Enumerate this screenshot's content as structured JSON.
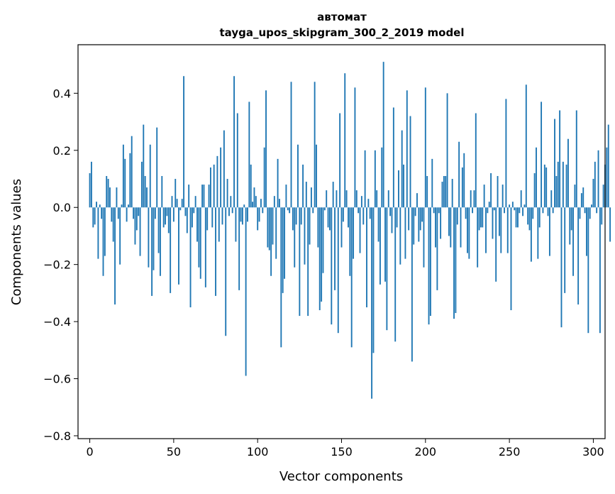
{
  "chart_data": {
    "type": "bar",
    "title": "автомат\ntayga_upos_skipgram_300_2_2019 model",
    "title_lines": [
      "автомат",
      "tayga_upos_skipgram_300_2_2019 model"
    ],
    "xlabel": "Vector components",
    "ylabel": "Components values",
    "xlim": [
      -7,
      307
    ],
    "ylim": [
      -0.81,
      0.57
    ],
    "xticks": [
      0,
      50,
      100,
      150,
      200,
      250,
      300
    ],
    "yticks": [
      -0.8,
      -0.6,
      -0.4,
      -0.2,
      0.0,
      0.2,
      0.4
    ],
    "ytick_labels": [
      "−0.8",
      "−0.6",
      "−0.4",
      "−0.2",
      "0.0",
      "0.2",
      "0.4"
    ],
    "grid": false,
    "bar_color": "#1f77b4",
    "x_start": 0,
    "values": [
      0.12,
      0.16,
      -0.07,
      -0.06,
      0.02,
      -0.18,
      0.01,
      -0.04,
      -0.24,
      -0.17,
      0.11,
      0.1,
      0.07,
      -0.05,
      -0.12,
      -0.34,
      0.07,
      -0.04,
      -0.2,
      0.01,
      0.22,
      0.17,
      -0.05,
      0.01,
      0.19,
      0.25,
      -0.04,
      -0.13,
      -0.08,
      -0.03,
      -0.17,
      0.16,
      0.29,
      0.11,
      0.07,
      -0.21,
      0.22,
      -0.31,
      -0.22,
      -0.04,
      0.28,
      -0.16,
      -0.24,
      0.11,
      -0.07,
      -0.06,
      -0.03,
      -0.09,
      -0.3,
      0.04,
      -0.05,
      0.1,
      0.03,
      -0.27,
      -0.01,
      0.03,
      0.46,
      -0.03,
      -0.09,
      0.08,
      -0.35,
      -0.07,
      -0.02,
      0.04,
      -0.12,
      -0.21,
      -0.25,
      0.08,
      0.08,
      -0.28,
      -0.08,
      0.08,
      0.14,
      -0.07,
      0.15,
      -0.31,
      0.18,
      -0.12,
      0.21,
      -0.06,
      0.27,
      -0.45,
      0.1,
      -0.03,
      0.04,
      -0.02,
      0.46,
      -0.12,
      0.33,
      -0.29,
      -0.05,
      -0.06,
      0.01,
      -0.59,
      -0.05,
      0.37,
      0.15,
      0.02,
      0.07,
      0.04,
      -0.08,
      -0.05,
      0.03,
      -0.02,
      0.21,
      0.41,
      -0.14,
      -0.15,
      -0.24,
      -0.13,
      0.04,
      -0.18,
      0.17,
      0.03,
      -0.49,
      -0.3,
      -0.25,
      0.08,
      -0.01,
      -0.02,
      0.44,
      -0.08,
      -0.21,
      -0.06,
      0.22,
      -0.38,
      -0.06,
      0.15,
      -0.2,
      0.09,
      -0.38,
      -0.13,
      0.07,
      -0.02,
      0.44,
      0.22,
      -0.14,
      -0.36,
      -0.33,
      -0.23,
      -0.01,
      0.06,
      -0.07,
      -0.08,
      -0.41,
      0.09,
      -0.29,
      0.06,
      -0.44,
      0.33,
      -0.14,
      -0.05,
      0.47,
      0.06,
      -0.07,
      -0.24,
      -0.49,
      -0.18,
      0.42,
      0.06,
      -0.02,
      -0.16,
      0.04,
      -0.06,
      0.2,
      -0.35,
      0.03,
      -0.04,
      -0.67,
      -0.51,
      0.2,
      0.06,
      -0.12,
      -0.27,
      0.21,
      0.51,
      -0.26,
      -0.43,
      0.06,
      -0.03,
      -0.09,
      0.35,
      -0.47,
      -0.07,
      0.13,
      -0.2,
      0.27,
      0.15,
      -0.18,
      0.41,
      -0.08,
      0.32,
      -0.54,
      -0.13,
      -0.03,
      0.05,
      -0.12,
      -0.08,
      -0.05,
      -0.21,
      0.42,
      0.11,
      -0.41,
      -0.38,
      0.17,
      -0.02,
      -0.14,
      -0.29,
      -0.02,
      -0.11,
      0.09,
      0.11,
      0.11,
      0.4,
      -0.1,
      -0.14,
      0.1,
      -0.39,
      -0.37,
      -0.06,
      0.23,
      -0.14,
      0.14,
      0.19,
      -0.04,
      -0.16,
      -0.18,
      0.06,
      -0.02,
      0.06,
      0.33,
      -0.21,
      -0.08,
      -0.07,
      -0.07,
      0.08,
      -0.16,
      -0.02,
      0.02,
      0.12,
      -0.11,
      -0.01,
      -0.26,
      0.11,
      -0.1,
      -0.16,
      0.08,
      -0.02,
      0.38,
      -0.16,
      0.01,
      -0.36,
      0.02,
      -0.01,
      -0.07,
      -0.07,
      -0.02,
      0.06,
      -0.03,
      0.01,
      0.43,
      -0.06,
      -0.08,
      -0.19,
      -0.04,
      0.12,
      0.21,
      -0.18,
      -0.07,
      0.37,
      -0.02,
      0.15,
      0.14,
      -0.03,
      -0.17,
      0.06,
      -0.02,
      0.31,
      0.11,
      0.16,
      0.34,
      -0.42,
      0.16,
      -0.3,
      0.15,
      0.24,
      -0.13,
      -0.08,
      -0.24,
      0.08,
      0.34,
      -0.34,
      -0.04,
      0.05,
      0.07,
      -0.02,
      -0.17,
      -0.44,
      -0.04,
      0.01,
      0.1,
      0.16,
      -0.02,
      0.2,
      -0.44,
      -0.06,
      0.08,
      0.15,
      0.21,
      0.29,
      -0.12
    ]
  }
}
